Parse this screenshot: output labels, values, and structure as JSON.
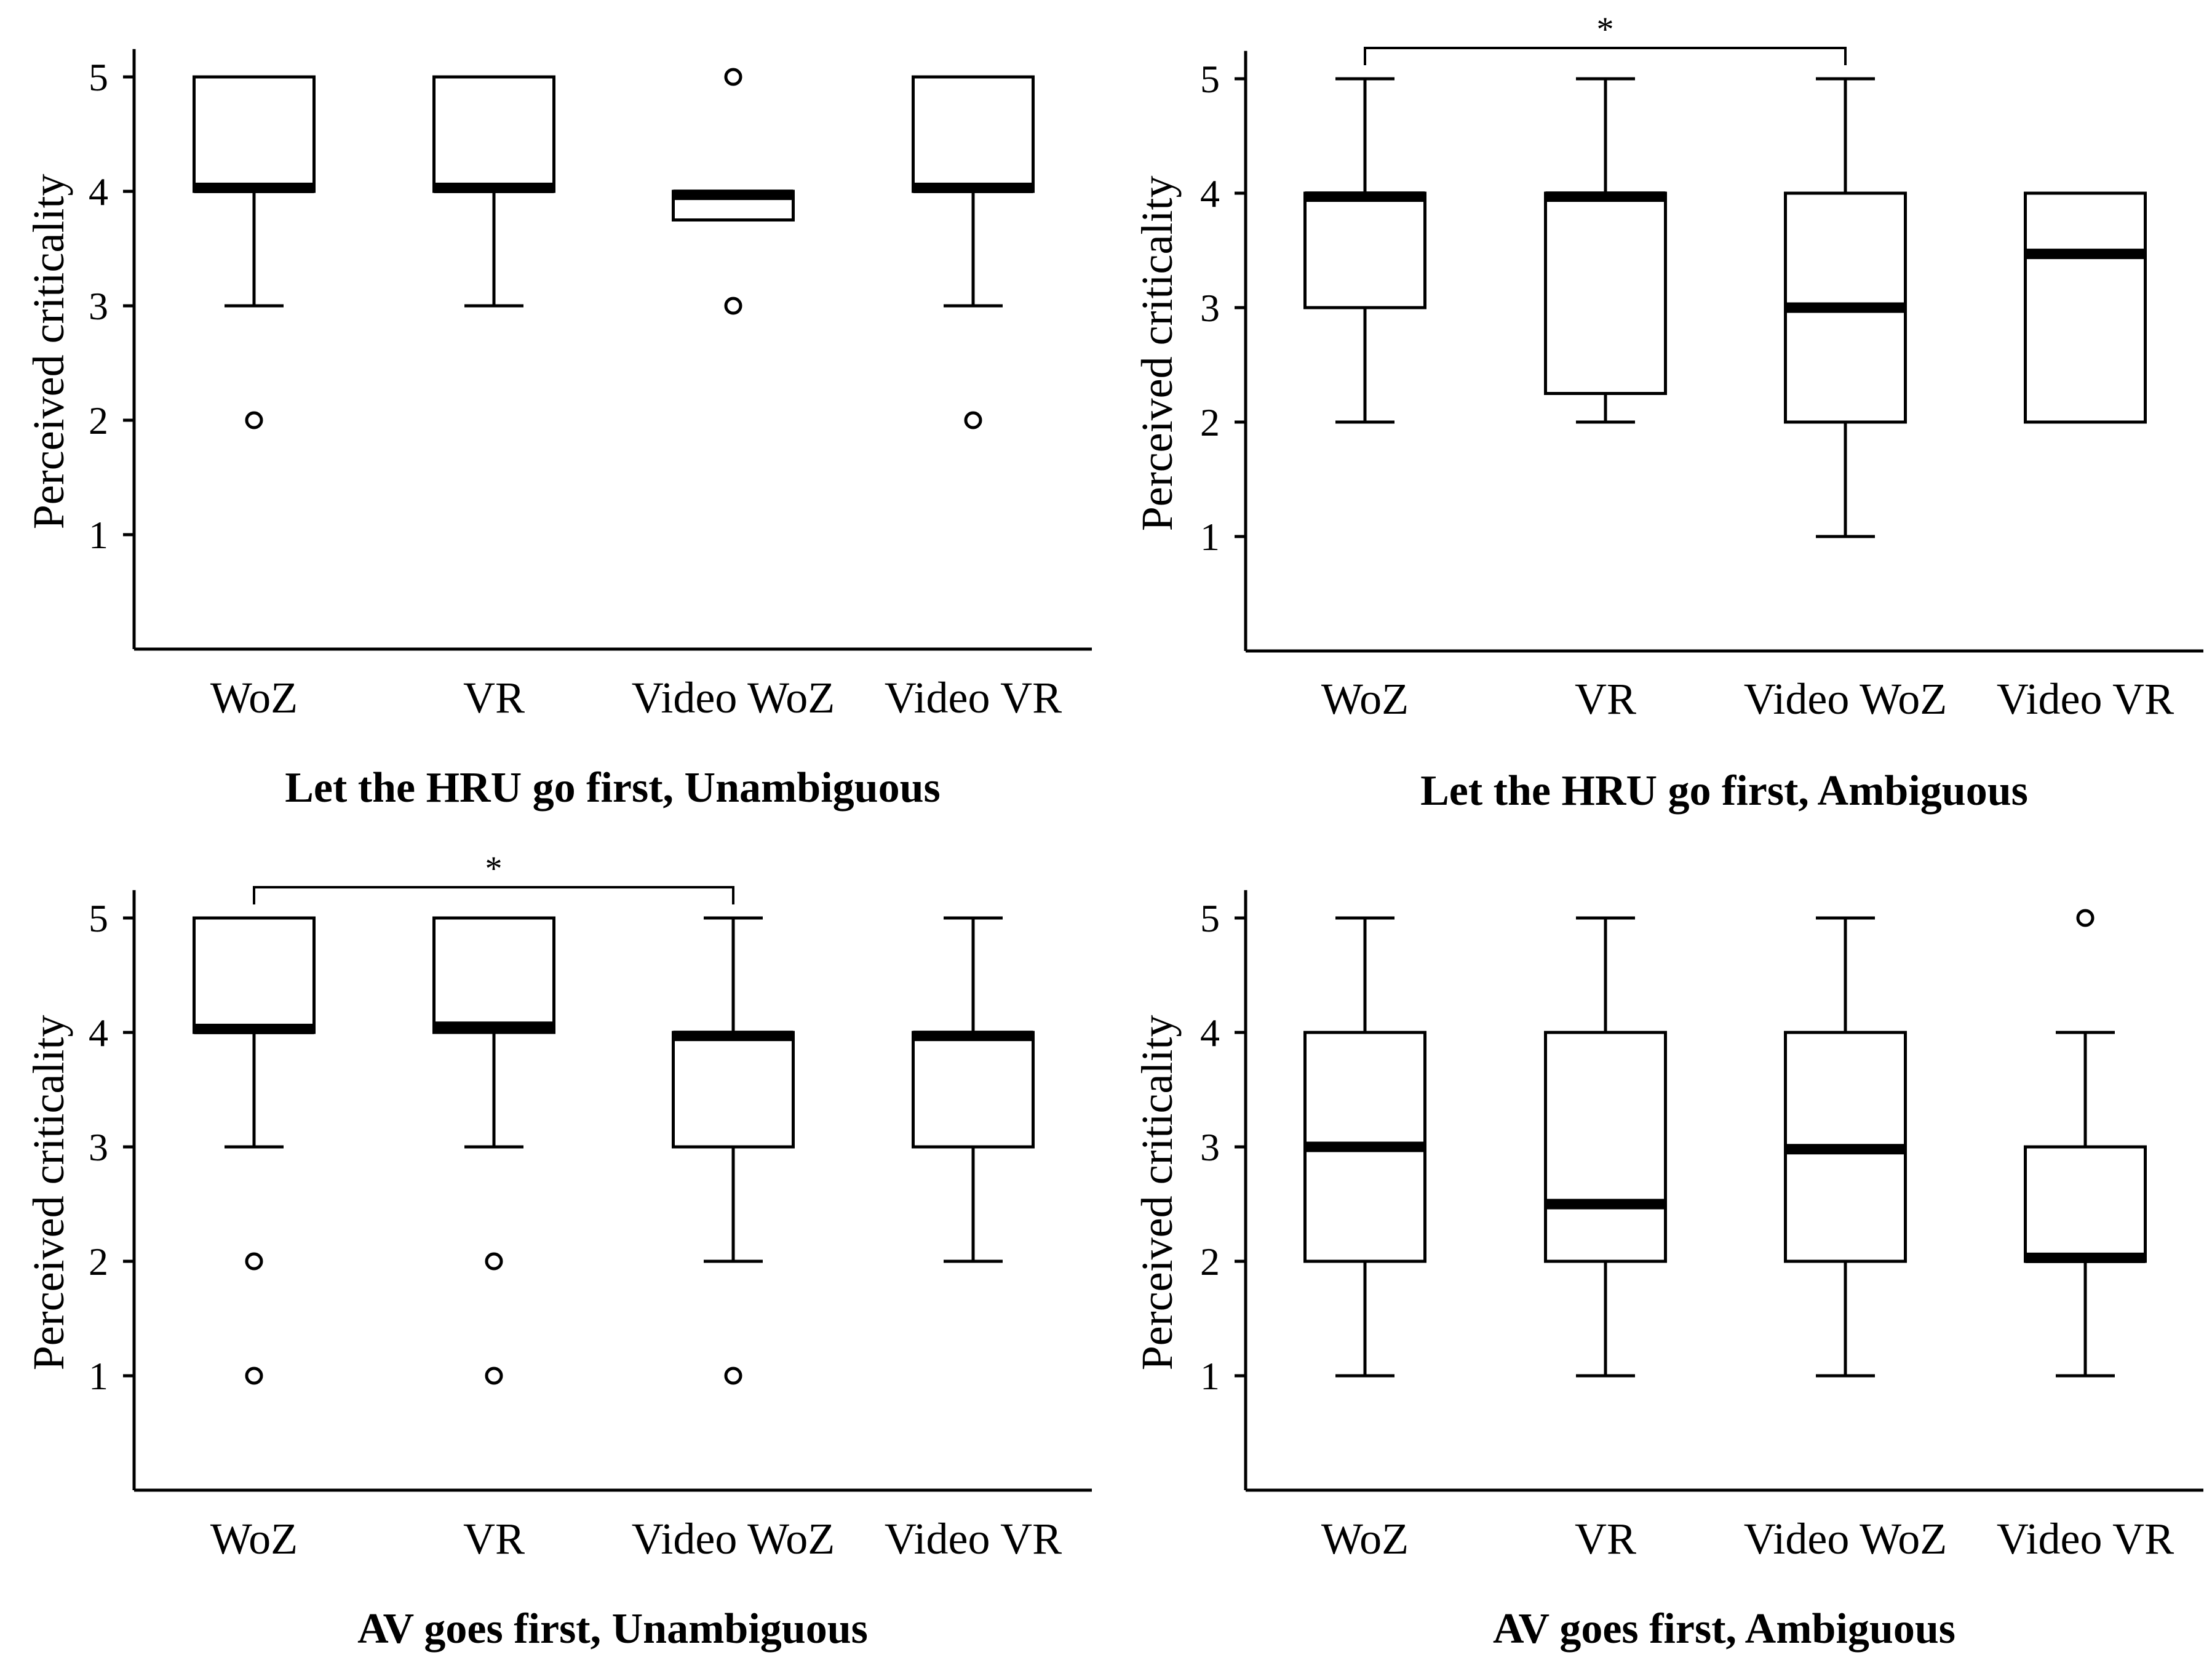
{
  "figure": {
    "colors": {
      "ink": "#000000",
      "box_fill": "#ffffff"
    }
  },
  "chart_data": [
    {
      "type": "box",
      "title": "Let the HRU go first, Unambiguous",
      "ylabel": "Perceived criticality",
      "yticks": [
        1,
        2,
        3,
        4,
        5
      ],
      "ylim": [
        0,
        5.2
      ],
      "categories": [
        "WoZ",
        "VR",
        "Video WoZ",
        "Video VR"
      ],
      "boxes": [
        {
          "q1": 4,
          "median": 4.03,
          "q3": 5,
          "whisker_low": 3,
          "whisker_high": 5,
          "outliers": [
            2
          ]
        },
        {
          "q1": 4,
          "median": 4.03,
          "q3": 5,
          "whisker_low": 3,
          "whisker_high": 5,
          "outliers": []
        },
        {
          "q1": 3.75,
          "median": 3.97,
          "q3": 4,
          "whisker_low": 3.75,
          "whisker_high": 4,
          "outliers": [
            5,
            3
          ]
        },
        {
          "q1": 4,
          "median": 4.03,
          "q3": 5,
          "whisker_low": 3,
          "whisker_high": 5,
          "outliers": [
            2
          ]
        }
      ],
      "significance": []
    },
    {
      "type": "box",
      "title": "Let the HRU go first, Ambiguous",
      "ylabel": "Perceived criticality",
      "yticks": [
        1,
        2,
        3,
        4,
        5
      ],
      "ylim": [
        0,
        5.2
      ],
      "categories": [
        "WoZ",
        "VR",
        "Video WoZ",
        "Video VR"
      ],
      "boxes": [
        {
          "q1": 3,
          "median": 3.97,
          "q3": 4,
          "whisker_low": 2,
          "whisker_high": 5,
          "outliers": []
        },
        {
          "q1": 2.25,
          "median": 3.97,
          "q3": 4,
          "whisker_low": 2,
          "whisker_high": 5,
          "outliers": []
        },
        {
          "q1": 2,
          "median": 3,
          "q3": 4,
          "whisker_low": 1,
          "whisker_high": 5,
          "outliers": []
        },
        {
          "q1": 2,
          "median": 3.47,
          "q3": 4,
          "whisker_low": 2,
          "whisker_high": 4,
          "outliers": []
        }
      ],
      "significance": [
        {
          "from": 0,
          "to": 2,
          "label": "*"
        }
      ]
    },
    {
      "type": "box",
      "title": "AV goes first, Unambiguous",
      "ylabel": "Perceived criticality",
      "yticks": [
        1,
        2,
        3,
        4,
        5
      ],
      "ylim": [
        0,
        5.2
      ],
      "categories": [
        "WoZ",
        "VR",
        "Video WoZ",
        "Video VR"
      ],
      "boxes": [
        {
          "q1": 4,
          "median": 4.03,
          "q3": 5,
          "whisker_low": 3,
          "whisker_high": 5,
          "outliers": [
            2,
            1
          ]
        },
        {
          "q1": 4,
          "median": 4.05,
          "q3": 5,
          "whisker_low": 3,
          "whisker_high": 5,
          "outliers": [
            2,
            1
          ]
        },
        {
          "q1": 3,
          "median": 3.97,
          "q3": 4,
          "whisker_low": 2,
          "whisker_high": 5,
          "outliers": [
            1
          ]
        },
        {
          "q1": 3,
          "median": 3.97,
          "q3": 4,
          "whisker_low": 2,
          "whisker_high": 5,
          "outliers": []
        }
      ],
      "significance": [
        {
          "from": 0,
          "to": 2,
          "label": "*"
        }
      ]
    },
    {
      "type": "box",
      "title": "AV goes first, Ambiguous",
      "ylabel": "Perceived criticality",
      "yticks": [
        1,
        2,
        3,
        4,
        5
      ],
      "ylim": [
        0,
        5.2
      ],
      "categories": [
        "WoZ",
        "VR",
        "Video WoZ",
        "Video VR"
      ],
      "boxes": [
        {
          "q1": 2,
          "median": 3,
          "q3": 4,
          "whisker_low": 1,
          "whisker_high": 5,
          "outliers": []
        },
        {
          "q1": 2,
          "median": 2.5,
          "q3": 4,
          "whisker_low": 1,
          "whisker_high": 5,
          "outliers": []
        },
        {
          "q1": 2,
          "median": 2.98,
          "q3": 4,
          "whisker_low": 1,
          "whisker_high": 5,
          "outliers": []
        },
        {
          "q1": 2,
          "median": 2.03,
          "q3": 3,
          "whisker_low": 1,
          "whisker_high": 4,
          "outliers": [
            5
          ]
        }
      ],
      "significance": []
    }
  ]
}
